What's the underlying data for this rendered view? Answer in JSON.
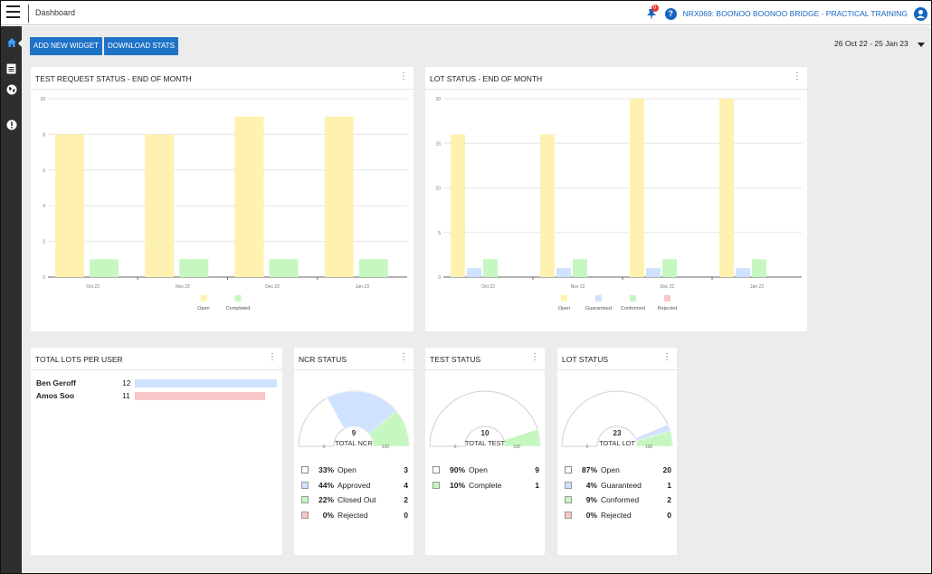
{
  "header": {
    "title": "Dashboard",
    "notification_count": "0",
    "help_label": "?",
    "project": "NRX069: BOONOO BOONOO BRIDGE - PRACTICAL TRAINING"
  },
  "sidebar": {
    "items": [
      {
        "icon": "home-icon",
        "active": true
      },
      {
        "icon": "document-icon"
      },
      {
        "icon": "globe-icon"
      },
      {
        "icon": "alert-icon"
      }
    ]
  },
  "toolbar": {
    "add_widget_label": "ADD NEW WIDGET",
    "download_label": "DOWNLOAD STATS",
    "date_range": "26 Oct 22 - 25 Jan 23"
  },
  "colors": {
    "open": "#fff1b0",
    "guaranteed": "#cfe2ff",
    "conformed": "#c6f7c1",
    "completed": "#c6f7c1",
    "rejected": "#f7c6c6",
    "accent": "#1f73c7"
  },
  "widgets": {
    "test_request": {
      "title": "TEST REQUEST STATUS - END OF MONTH",
      "menu": "⋮"
    },
    "lot_status_chart": {
      "title": "LOT STATUS - END OF MONTH",
      "menu": "⋮"
    },
    "total_lots": {
      "title": "TOTAL LOTS PER USER",
      "menu": "⋮"
    },
    "ncr_status": {
      "title": "NCR STATUS",
      "menu": "⋮"
    },
    "test_status": {
      "title": "TEST STATUS",
      "menu": "⋮"
    },
    "lot_status": {
      "title": "LOT STATUS",
      "menu": "⋮"
    }
  },
  "users": [
    {
      "name": "Ben Geroff",
      "count": 12,
      "color": "#cfe2ff"
    },
    {
      "name": "Amos Soo",
      "count": 11,
      "color": "#f7c6c6"
    }
  ],
  "gauges": {
    "ncr": {
      "total": "9",
      "total_label": "TOTAL NCR",
      "min": "0",
      "max": "100",
      "items": [
        {
          "pct": "33%",
          "label": "Open",
          "count": "3",
          "color": "#ffffff",
          "fraction": 0.33
        },
        {
          "pct": "44%",
          "label": "Approved",
          "count": "4",
          "color": "#cfe2ff",
          "fraction": 0.44
        },
        {
          "pct": "22%",
          "label": "Closed Out",
          "count": "2",
          "color": "#c6f7c1",
          "fraction": 0.22
        },
        {
          "pct": "0%",
          "label": "Rejected",
          "count": "0",
          "color": "#f7c6c6",
          "fraction": 0.0
        }
      ]
    },
    "test": {
      "total": "10",
      "total_label": "TOTAL TEST",
      "min": "0",
      "max": "100",
      "items": [
        {
          "pct": "90%",
          "label": "Open",
          "count": "9",
          "color": "#ffffff",
          "fraction": 0.9
        },
        {
          "pct": "10%",
          "label": "Complete",
          "count": "1",
          "color": "#c6f7c1",
          "fraction": 0.1
        }
      ]
    },
    "lot": {
      "total": "23",
      "total_label": "TOTAL LOT",
      "min": "0",
      "max": "100",
      "items": [
        {
          "pct": "87%",
          "label": "Open",
          "count": "20",
          "color": "#ffffff",
          "fraction": 0.87
        },
        {
          "pct": "4%",
          "label": "Guaranteed",
          "count": "1",
          "color": "#cfe2ff",
          "fraction": 0.04
        },
        {
          "pct": "9%",
          "label": "Conformed",
          "count": "2",
          "color": "#c6f7c1",
          "fraction": 0.09
        },
        {
          "pct": "0%",
          "label": "Rejected",
          "count": "0",
          "color": "#f7c6c6",
          "fraction": 0.0
        }
      ]
    }
  },
  "chart_data": [
    {
      "type": "bar",
      "title": "TEST REQUEST STATUS - END OF MONTH",
      "categories": [
        "Oct 22",
        "Nov 22",
        "Dec 22",
        "Jan 23"
      ],
      "series": [
        {
          "name": "Open",
          "values": [
            8,
            8,
            9,
            9
          ],
          "color": "#fff1b0"
        },
        {
          "name": "Completed",
          "values": [
            1,
            1,
            1,
            1
          ],
          "color": "#c6f7c1"
        }
      ],
      "ylim": [
        0,
        10
      ],
      "yticks": [
        0,
        2,
        4,
        6,
        8,
        10
      ],
      "grid": true,
      "legend": "bottom"
    },
    {
      "type": "bar",
      "title": "LOT STATUS - END OF MONTH",
      "categories": [
        "Oct 22",
        "Nov 22",
        "Dec 22",
        "Jan 23"
      ],
      "series": [
        {
          "name": "Open",
          "values": [
            16,
            16,
            20,
            20
          ],
          "color": "#fff1b0"
        },
        {
          "name": "Guaranteed",
          "values": [
            1,
            1,
            1,
            1
          ],
          "color": "#cfe2ff"
        },
        {
          "name": "Conformed",
          "values": [
            2,
            2,
            2,
            2
          ],
          "color": "#c6f7c1"
        },
        {
          "name": "Rejected",
          "values": [
            0,
            0,
            0,
            0
          ],
          "color": "#f7c6c6"
        }
      ],
      "ylim": [
        0,
        20
      ],
      "yticks": [
        0,
        5,
        10,
        15,
        20
      ],
      "grid": true,
      "legend": "bottom"
    }
  ]
}
